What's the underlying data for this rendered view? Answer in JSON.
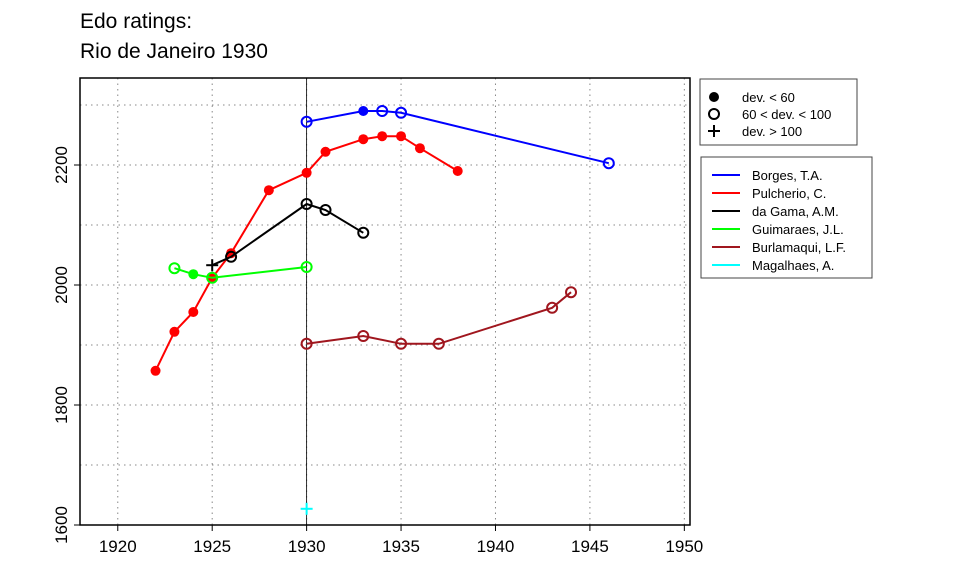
{
  "chart_data": {
    "type": "line",
    "title_lines": [
      "Edo ratings:",
      "Rio de Janeiro 1930"
    ],
    "xlabel": "",
    "ylabel": "",
    "xlim": [
      1918,
      1950.3
    ],
    "ylim": [
      1600,
      2345
    ],
    "xticks": [
      1920,
      1925,
      1930,
      1935,
      1940,
      1945,
      1950
    ],
    "yticks": [
      1600,
      1800,
      2000,
      2200
    ],
    "grid_y": [
      1700,
      1800,
      1900,
      2000,
      2100,
      2200,
      2300
    ],
    "grid": true,
    "reference_line_x": 1930,
    "marker_legend": [
      {
        "marker": "filled",
        "label": "dev. < 60"
      },
      {
        "marker": "open",
        "label": "60 < dev. < 100"
      },
      {
        "marker": "plus",
        "label": "dev. > 100"
      }
    ],
    "legend_placement": "right",
    "series": [
      {
        "name": "Borges, T.A.",
        "color": "#0000ff",
        "points": [
          [
            1930,
            2272,
            "open"
          ],
          [
            1933,
            2290,
            "filled"
          ],
          [
            1934,
            2290,
            "open"
          ],
          [
            1935,
            2287,
            "open"
          ],
          [
            1946,
            2203,
            "open"
          ]
        ]
      },
      {
        "name": "Pulcherio, C.",
        "color": "#ff0000",
        "points": [
          [
            1922,
            1857,
            "filled"
          ],
          [
            1923,
            1922,
            "filled"
          ],
          [
            1924,
            1955,
            "filled"
          ],
          [
            1925,
            2012,
            "filled"
          ],
          [
            1926,
            2053,
            "filled"
          ],
          [
            1928,
            2158,
            "filled"
          ],
          [
            1930,
            2187,
            "filled"
          ],
          [
            1931,
            2222,
            "filled"
          ],
          [
            1933,
            2243,
            "filled"
          ],
          [
            1934,
            2248,
            "filled"
          ],
          [
            1935,
            2248,
            "filled"
          ],
          [
            1936,
            2228,
            "filled"
          ],
          [
            1938,
            2190,
            "filled"
          ]
        ]
      },
      {
        "name": "da Gama, A.M.",
        "color": "#000000",
        "points": [
          [
            1925,
            2033,
            "plus"
          ],
          [
            1926,
            2047,
            "open"
          ],
          [
            1930,
            2135,
            "open"
          ],
          [
            1931,
            2125,
            "open"
          ],
          [
            1933,
            2087,
            "open"
          ]
        ]
      },
      {
        "name": "Guimaraes, J.L.",
        "color": "#00ff00",
        "points": [
          [
            1923,
            2028,
            "open"
          ],
          [
            1924,
            2018,
            "filled"
          ],
          [
            1925,
            2012,
            "open"
          ],
          [
            1930,
            2030,
            "open"
          ]
        ]
      },
      {
        "name": "Burlamaqui, L.F.",
        "color": "#a0161e",
        "points": [
          [
            1930,
            1902,
            "open"
          ],
          [
            1933,
            1915,
            "open"
          ],
          [
            1935,
            1902,
            "open"
          ],
          [
            1937,
            1902,
            "open"
          ],
          [
            1943,
            1962,
            "open"
          ],
          [
            1944,
            1988,
            "open"
          ]
        ]
      },
      {
        "name": "Magalhaes, A.",
        "color": "#00ffff",
        "points": [
          [
            1930,
            1627,
            "plus"
          ]
        ]
      }
    ]
  }
}
